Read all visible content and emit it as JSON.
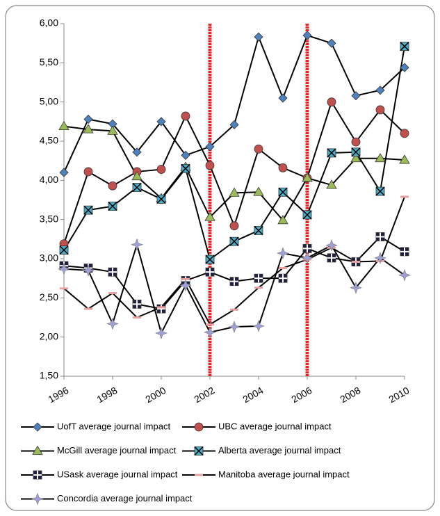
{
  "chart_data": {
    "type": "line",
    "x": [
      1996,
      1997,
      1998,
      1999,
      2000,
      2001,
      2002,
      2003,
      2004,
      2005,
      2006,
      2007,
      2008,
      2009,
      2010
    ],
    "xlim": [
      1996,
      2010
    ],
    "xticks": [
      1996,
      1998,
      2000,
      2002,
      2004,
      2006,
      2008,
      2010
    ],
    "ylim": [
      1.5,
      6.0
    ],
    "yticks": [
      {
        "value": 1.5,
        "label": "1,50"
      },
      {
        "value": 2.0,
        "label": "2,00"
      },
      {
        "value": 2.5,
        "label": "2,50"
      },
      {
        "value": 3.0,
        "label": "3,00"
      },
      {
        "value": 3.5,
        "label": "3,50"
      },
      {
        "value": 4.0,
        "label": "4,00"
      },
      {
        "value": 4.5,
        "label": "4,50"
      },
      {
        "value": 5.0,
        "label": "5,00"
      },
      {
        "value": 5.5,
        "label": "5,50"
      },
      {
        "value": 6.0,
        "label": "6,00"
      }
    ],
    "grid": false,
    "line_color": "#000000",
    "vlines": [
      2002,
      2006
    ],
    "vline_color": "#e02828",
    "legend": "bottom",
    "series": [
      {
        "name": "UofT average journal impact",
        "color": "#4f81bd",
        "marker": "diamond",
        "values": [
          4.1,
          4.78,
          4.72,
          4.36,
          4.75,
          4.32,
          4.43,
          4.71,
          5.83,
          5.05,
          5.85,
          5.75,
          5.08,
          5.15,
          5.44
        ]
      },
      {
        "name": "UBC average journal impact",
        "color": "#c0504d",
        "marker": "circle",
        "values": [
          3.19,
          4.11,
          3.93,
          4.11,
          4.14,
          4.82,
          4.19,
          3.42,
          4.4,
          4.16,
          4.03,
          5.0,
          4.49,
          4.9,
          4.6
        ]
      },
      {
        "name": "McGill average journal impact",
        "color": "#9bbb59",
        "marker": "triangle",
        "values": [
          4.69,
          4.65,
          4.63,
          4.05,
          3.77,
          4.17,
          3.53,
          3.84,
          3.85,
          3.49,
          4.03,
          3.94,
          4.28,
          4.28,
          4.26
        ]
      },
      {
        "name": "Alberta average journal impact",
        "color": "#4bacc6",
        "marker": "squarex",
        "values": [
          3.11,
          3.62,
          3.67,
          3.91,
          3.76,
          4.15,
          2.99,
          3.22,
          3.36,
          3.85,
          3.56,
          4.35,
          4.36,
          3.86,
          5.71
        ]
      },
      {
        "name": "USask average journal impact",
        "color": "#1f1f3f",
        "marker": "squareplus",
        "values": [
          2.91,
          2.88,
          2.83,
          2.42,
          2.36,
          2.72,
          2.83,
          2.71,
          2.75,
          2.75,
          3.13,
          3.01,
          2.96,
          3.28,
          3.09
        ]
      },
      {
        "name": "Manitoba average journal impact",
        "color": "#e6a0a0",
        "marker": "dash",
        "values": [
          2.62,
          2.36,
          2.56,
          2.25,
          2.38,
          2.74,
          2.16,
          2.35,
          2.63,
          2.88,
          2.99,
          3.14,
          2.96,
          2.97,
          3.79
        ]
      },
      {
        "name": "Concordia average journal impact",
        "color": "#a0a0d8",
        "marker": "star",
        "values": [
          2.87,
          2.85,
          2.17,
          3.18,
          2.05,
          2.66,
          2.06,
          2.13,
          2.14,
          3.07,
          3.01,
          3.17,
          2.63,
          3.01,
          2.79
        ]
      }
    ]
  }
}
